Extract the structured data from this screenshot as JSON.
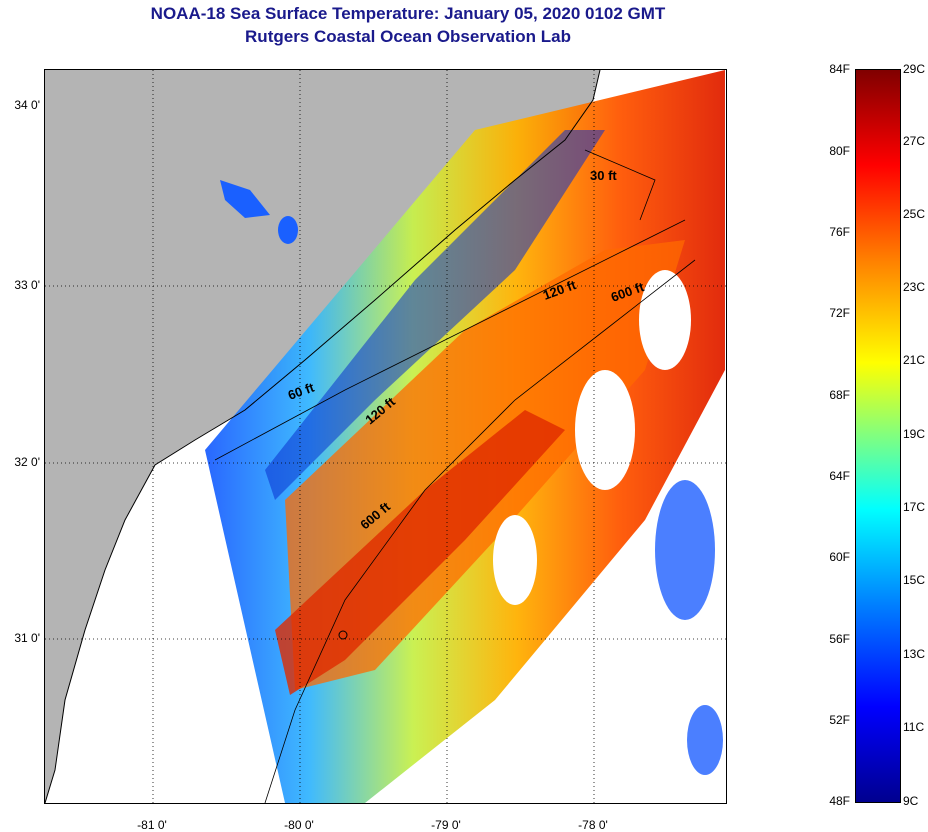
{
  "header": {
    "title": "NOAA-18 Sea Surface Temperature:  January 05, 2020 0102 GMT",
    "subtitle": "Rutgers Coastal Ocean Observation Lab"
  },
  "map": {
    "latitude_labels": [
      "34 0'",
      "33 0'",
      "32 0'",
      "31 0'"
    ],
    "longitude_labels": [
      "-81 0'",
      "-80 0'",
      "-79 0'",
      "-78 0'"
    ],
    "isobath_labels": [
      "30 ft",
      "120 ft",
      "600 ft",
      "60 ft",
      "120 ft",
      "600 ft"
    ],
    "colors": {
      "land": "#b4b4b4",
      "no_data": "#ffffff",
      "coastline": "#000000"
    }
  },
  "colorbar": {
    "fahrenheit_labels": [
      "84F",
      "80F",
      "76F",
      "72F",
      "68F",
      "64F",
      "60F",
      "56F",
      "52F",
      "48F"
    ],
    "celsius_labels": [
      "29C",
      "27C",
      "25C",
      "23C",
      "21C",
      "19C",
      "17C",
      "15C",
      "13C",
      "11C",
      "9C"
    ],
    "colormap": [
      "#00008f",
      "#0000ff",
      "#0080ff",
      "#00ffff",
      "#80ff80",
      "#ffff00",
      "#ff8000",
      "#ff0000",
      "#800000"
    ]
  }
}
